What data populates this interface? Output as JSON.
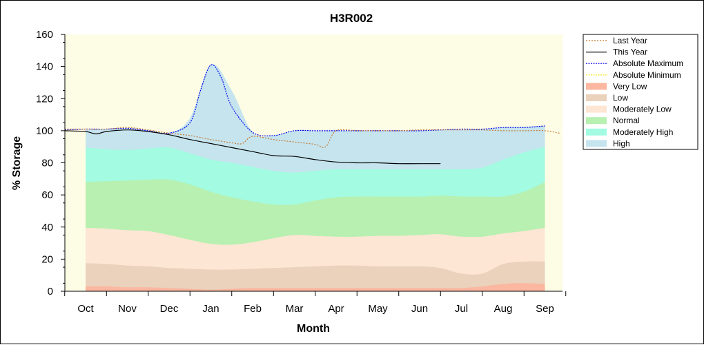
{
  "chart_data": {
    "type": "area",
    "title": "H3R002",
    "xlabel": "Month",
    "ylabel": "% Storage",
    "ylim": [
      0,
      160
    ],
    "yticks": [
      0,
      20,
      40,
      60,
      80,
      100,
      120,
      140,
      160
    ],
    "categories": [
      "Oct",
      "Nov",
      "Dec",
      "Jan",
      "Feb",
      "Mar",
      "Apr",
      "May",
      "Jun",
      "Jul",
      "Aug",
      "Sep"
    ],
    "grid": false,
    "legend_position": "right",
    "colors": {
      "plot_background": "#fdfde6",
      "very_low": "#fbb7a0",
      "low": "#ead2bc",
      "moderately_low": "#fde6d4",
      "normal": "#b7f0b0",
      "moderately_high": "#a3fbe1",
      "high": "#c5e4ee",
      "last_year": "#c5772e",
      "this_year": "#000000",
      "absolute_maximum": "#0000ee",
      "absolute_minimum": "#e6e600"
    },
    "legend": [
      {
        "label": "Last Year",
        "kind": "line",
        "style": "dotted",
        "color": "#c5772e"
      },
      {
        "label": "This Year",
        "kind": "line",
        "style": "solid",
        "color": "#000000"
      },
      {
        "label": "Absolute Maximum",
        "kind": "line",
        "style": "dashdot",
        "color": "#0000ee"
      },
      {
        "label": "Absolute Minimum",
        "kind": "line",
        "style": "dashdot",
        "color": "#e6e600"
      },
      {
        "label": "Very Low",
        "kind": "band",
        "color": "#fbb7a0"
      },
      {
        "label": "Low",
        "kind": "band",
        "color": "#ead2bc"
      },
      {
        "label": "Moderately Low",
        "kind": "band",
        "color": "#fde6d4"
      },
      {
        "label": "Normal",
        "kind": "band",
        "color": "#b7f0b0"
      },
      {
        "label": "Moderately High",
        "kind": "band",
        "color": "#a3fbe1"
      },
      {
        "label": "High",
        "kind": "band",
        "color": "#c5e4ee"
      }
    ],
    "band_x": [
      0,
      0.5,
      1,
      1.5,
      2,
      2.5,
      3,
      3.5,
      4,
      4.5,
      5,
      5.5,
      6,
      6.5,
      7,
      7.5,
      8,
      8.5,
      9,
      9.5,
      10,
      10.5,
      11
    ],
    "bands": {
      "very_low_top": [
        3,
        3,
        2.5,
        2.5,
        2,
        1.5,
        1,
        1.5,
        2,
        2,
        2,
        2,
        2,
        2,
        2,
        2,
        2,
        2,
        2,
        3,
        4.5,
        5,
        4.5
      ],
      "low_top": [
        17.5,
        17,
        16,
        15.5,
        14.5,
        14,
        13.5,
        13.5,
        14,
        14.5,
        15,
        15.5,
        16,
        16,
        15.5,
        15.5,
        15.5,
        14.5,
        11,
        11,
        17,
        18.5,
        18.5
      ],
      "mod_low_top": [
        39.5,
        39,
        38,
        37.5,
        35,
        32,
        29.5,
        29,
        30.5,
        33,
        35,
        34.5,
        34,
        34,
        34.5,
        34.5,
        35,
        35.5,
        34,
        34,
        36,
        37.5,
        39.5
      ],
      "normal_top": [
        68,
        68.5,
        69,
        69.5,
        69.5,
        66.5,
        62,
        58.5,
        56,
        54,
        54,
        56.5,
        58.5,
        59,
        59,
        59,
        59,
        59.5,
        59,
        59,
        59,
        62,
        68
      ],
      "mod_high_top": [
        89.5,
        88.5,
        88,
        89,
        89.5,
        86,
        82,
        80,
        77.5,
        75,
        74,
        75,
        76,
        76,
        76,
        76,
        76,
        76,
        76,
        77,
        82,
        86.5,
        90
      ],
      "high_top": [
        100.5,
        101,
        101,
        100,
        98.5,
        108,
        141,
        125,
        99,
        97,
        100,
        100,
        100,
        100,
        100,
        100,
        100,
        100.5,
        100.5,
        101,
        102,
        102.5,
        103
      ]
    },
    "series": [
      {
        "name": "Absolute Maximum",
        "x": [
          -0.5,
          0,
          0.5,
          1,
          1.5,
          2,
          2.5,
          2.75,
          3,
          3.25,
          3.5,
          4,
          4.5,
          5,
          5.5,
          6,
          6.5,
          7,
          7.5,
          8,
          8.5,
          9,
          9.5,
          10,
          10.5,
          11
        ],
        "values": [
          100.5,
          101,
          101,
          101.5,
          100,
          98.5,
          105,
          125,
          141,
          133,
          115,
          99,
          97,
          100,
          100,
          100,
          100,
          100,
          100,
          100,
          100.5,
          101,
          101,
          102,
          102,
          103
        ]
      },
      {
        "name": "Last Year",
        "x": [
          -0.5,
          0,
          0.5,
          1,
          1.5,
          2,
          2.5,
          3,
          3.5,
          3.75,
          4,
          4.5,
          5,
          5.5,
          5.75,
          6,
          6.5,
          7,
          7.5,
          8,
          8.5,
          9,
          9.5,
          10,
          10.5,
          11,
          11.35
        ],
        "values": [
          101,
          101,
          101,
          102,
          100.5,
          98.5,
          97,
          94.5,
          92.5,
          92,
          96.5,
          94.5,
          93,
          91.5,
          90,
          100,
          100,
          100,
          100,
          100.5,
          100.5,
          100.5,
          100.5,
          100,
          100,
          100,
          98.5
        ]
      },
      {
        "name": "This Year",
        "x": [
          -0.5,
          0,
          0.25,
          0.5,
          1,
          1.5,
          2,
          2.5,
          3,
          3.5,
          4,
          4.5,
          5,
          5.5,
          6,
          6.5,
          7,
          7.5,
          8,
          8.5
        ],
        "values": [
          100,
          99.5,
          98,
          99.5,
          100.5,
          99.5,
          97.5,
          94.5,
          92,
          89.5,
          87,
          84.5,
          84,
          82,
          80.5,
          80,
          80,
          79.5,
          79.5,
          79.5
        ]
      }
    ]
  }
}
